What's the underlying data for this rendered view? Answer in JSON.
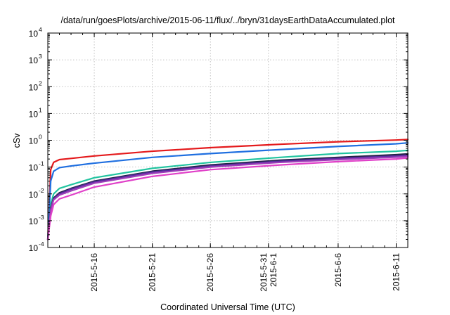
{
  "chart_data": {
    "type": "line",
    "title": "/data/run/goesPlots/archive/2015-06-11/flux/../bryn/31daysEarthDataAccumulated.plot",
    "xlabel": "Coordinated Universal Time (UTC)",
    "ylabel": "cSv",
    "yscale": "log",
    "ylim": [
      0.0001,
      10000
    ],
    "xlim": [
      "2015-05-12",
      "2015-06-12"
    ],
    "y_ticks": [
      {
        "value": 0.0001,
        "base": "10",
        "exp": "-4"
      },
      {
        "value": 0.001,
        "base": "10",
        "exp": "-3"
      },
      {
        "value": 0.01,
        "base": "10",
        "exp": "-2"
      },
      {
        "value": 0.1,
        "base": "10",
        "exp": "-1"
      },
      {
        "value": 1,
        "base": "10",
        "exp": "0"
      },
      {
        "value": 10,
        "base": "10",
        "exp": "1"
      },
      {
        "value": 100,
        "base": "10",
        "exp": "2"
      },
      {
        "value": 1000,
        "base": "10",
        "exp": "3"
      },
      {
        "value": 10000,
        "base": "10",
        "exp": "4"
      }
    ],
    "x_ticks": [
      {
        "date": "2015-05-16",
        "lines": [
          "2015-5-16"
        ]
      },
      {
        "date": "2015-05-21",
        "lines": [
          "2015-5-21"
        ]
      },
      {
        "date": "2015-05-26",
        "lines": [
          "2015-5-26"
        ]
      },
      {
        "date": "2015-05-31",
        "lines": [
          "2015-5-31",
          "2015-6-1"
        ]
      },
      {
        "date": "2015-06-06",
        "lines": [
          "2015-6-6"
        ]
      },
      {
        "date": "2015-06-11",
        "lines": [
          "2015-6-11"
        ]
      }
    ],
    "grid": true,
    "series": [
      {
        "color": "#e41a1c",
        "x": [
          "2015-05-12",
          "2015-05-12T06:00",
          "2015-05-12T12:00",
          "2015-05-13",
          "2015-05-14",
          "2015-05-16",
          "2015-05-21",
          "2015-05-26",
          "2015-06-01",
          "2015-06-06",
          "2015-06-11",
          "2015-06-12"
        ],
        "y": [
          0.0002,
          0.08,
          0.15,
          0.19,
          0.21,
          0.26,
          0.39,
          0.53,
          0.71,
          0.88,
          1.02,
          1.07
        ]
      },
      {
        "color": "#1f6fe0",
        "x": [
          "2015-05-12",
          "2015-05-12T06:00",
          "2015-05-12T12:00",
          "2015-05-13",
          "2015-05-14",
          "2015-05-16",
          "2015-05-21",
          "2015-05-26",
          "2015-06-01",
          "2015-06-06",
          "2015-06-11",
          "2015-06-12"
        ],
        "y": [
          0.0002,
          0.03,
          0.07,
          0.095,
          0.11,
          0.14,
          0.23,
          0.32,
          0.45,
          0.59,
          0.74,
          0.8
        ]
      },
      {
        "color": "#22c4a0",
        "x": [
          "2015-05-12",
          "2015-05-12T06:00",
          "2015-05-12T12:00",
          "2015-05-13",
          "2015-05-14",
          "2015-05-16",
          "2015-05-21",
          "2015-05-26",
          "2015-06-01",
          "2015-06-06",
          "2015-06-11",
          "2015-06-12"
        ],
        "y": [
          0.0002,
          0.004,
          0.01,
          0.016,
          0.022,
          0.04,
          0.09,
          0.15,
          0.23,
          0.32,
          0.39,
          0.42
        ]
      },
      {
        "color": "#222244",
        "x": [
          "2015-05-12",
          "2015-05-12T06:00",
          "2015-05-12T12:00",
          "2015-05-13",
          "2015-05-14",
          "2015-05-16",
          "2015-05-21",
          "2015-05-26",
          "2015-06-01",
          "2015-06-06",
          "2015-06-11",
          "2015-06-12"
        ],
        "y": [
          0.0002,
          0.003,
          0.007,
          0.011,
          0.016,
          0.03,
          0.07,
          0.12,
          0.18,
          0.23,
          0.29,
          0.31
        ]
      },
      {
        "color": "#5a2ca0",
        "x": [
          "2015-05-12",
          "2015-05-12T06:00",
          "2015-05-12T12:00",
          "2015-05-13",
          "2015-05-14",
          "2015-05-16",
          "2015-05-21",
          "2015-05-26",
          "2015-06-01",
          "2015-06-06",
          "2015-06-11",
          "2015-06-12"
        ],
        "y": [
          0.0002,
          0.0028,
          0.0065,
          0.01,
          0.015,
          0.028,
          0.065,
          0.11,
          0.165,
          0.21,
          0.26,
          0.28
        ]
      },
      {
        "color": "#9e3fb8",
        "x": [
          "2015-05-12",
          "2015-05-12T06:00",
          "2015-05-12T12:00",
          "2015-05-13",
          "2015-05-14",
          "2015-05-16",
          "2015-05-21",
          "2015-05-26",
          "2015-06-01",
          "2015-06-06",
          "2015-06-11",
          "2015-06-12"
        ],
        "y": [
          0.0002,
          0.0025,
          0.006,
          0.009,
          0.013,
          0.025,
          0.058,
          0.1,
          0.15,
          0.19,
          0.235,
          0.25
        ]
      },
      {
        "color": "#e040c8",
        "x": [
          "2015-05-12",
          "2015-05-12T06:00",
          "2015-05-12T12:00",
          "2015-05-13",
          "2015-05-14",
          "2015-05-16",
          "2015-05-21",
          "2015-05-26",
          "2015-06-01",
          "2015-06-06",
          "2015-06-11",
          "2015-06-12"
        ],
        "y": [
          0.0002,
          0.0015,
          0.004,
          0.0065,
          0.009,
          0.018,
          0.045,
          0.08,
          0.12,
          0.16,
          0.2,
          0.22
        ]
      }
    ]
  }
}
